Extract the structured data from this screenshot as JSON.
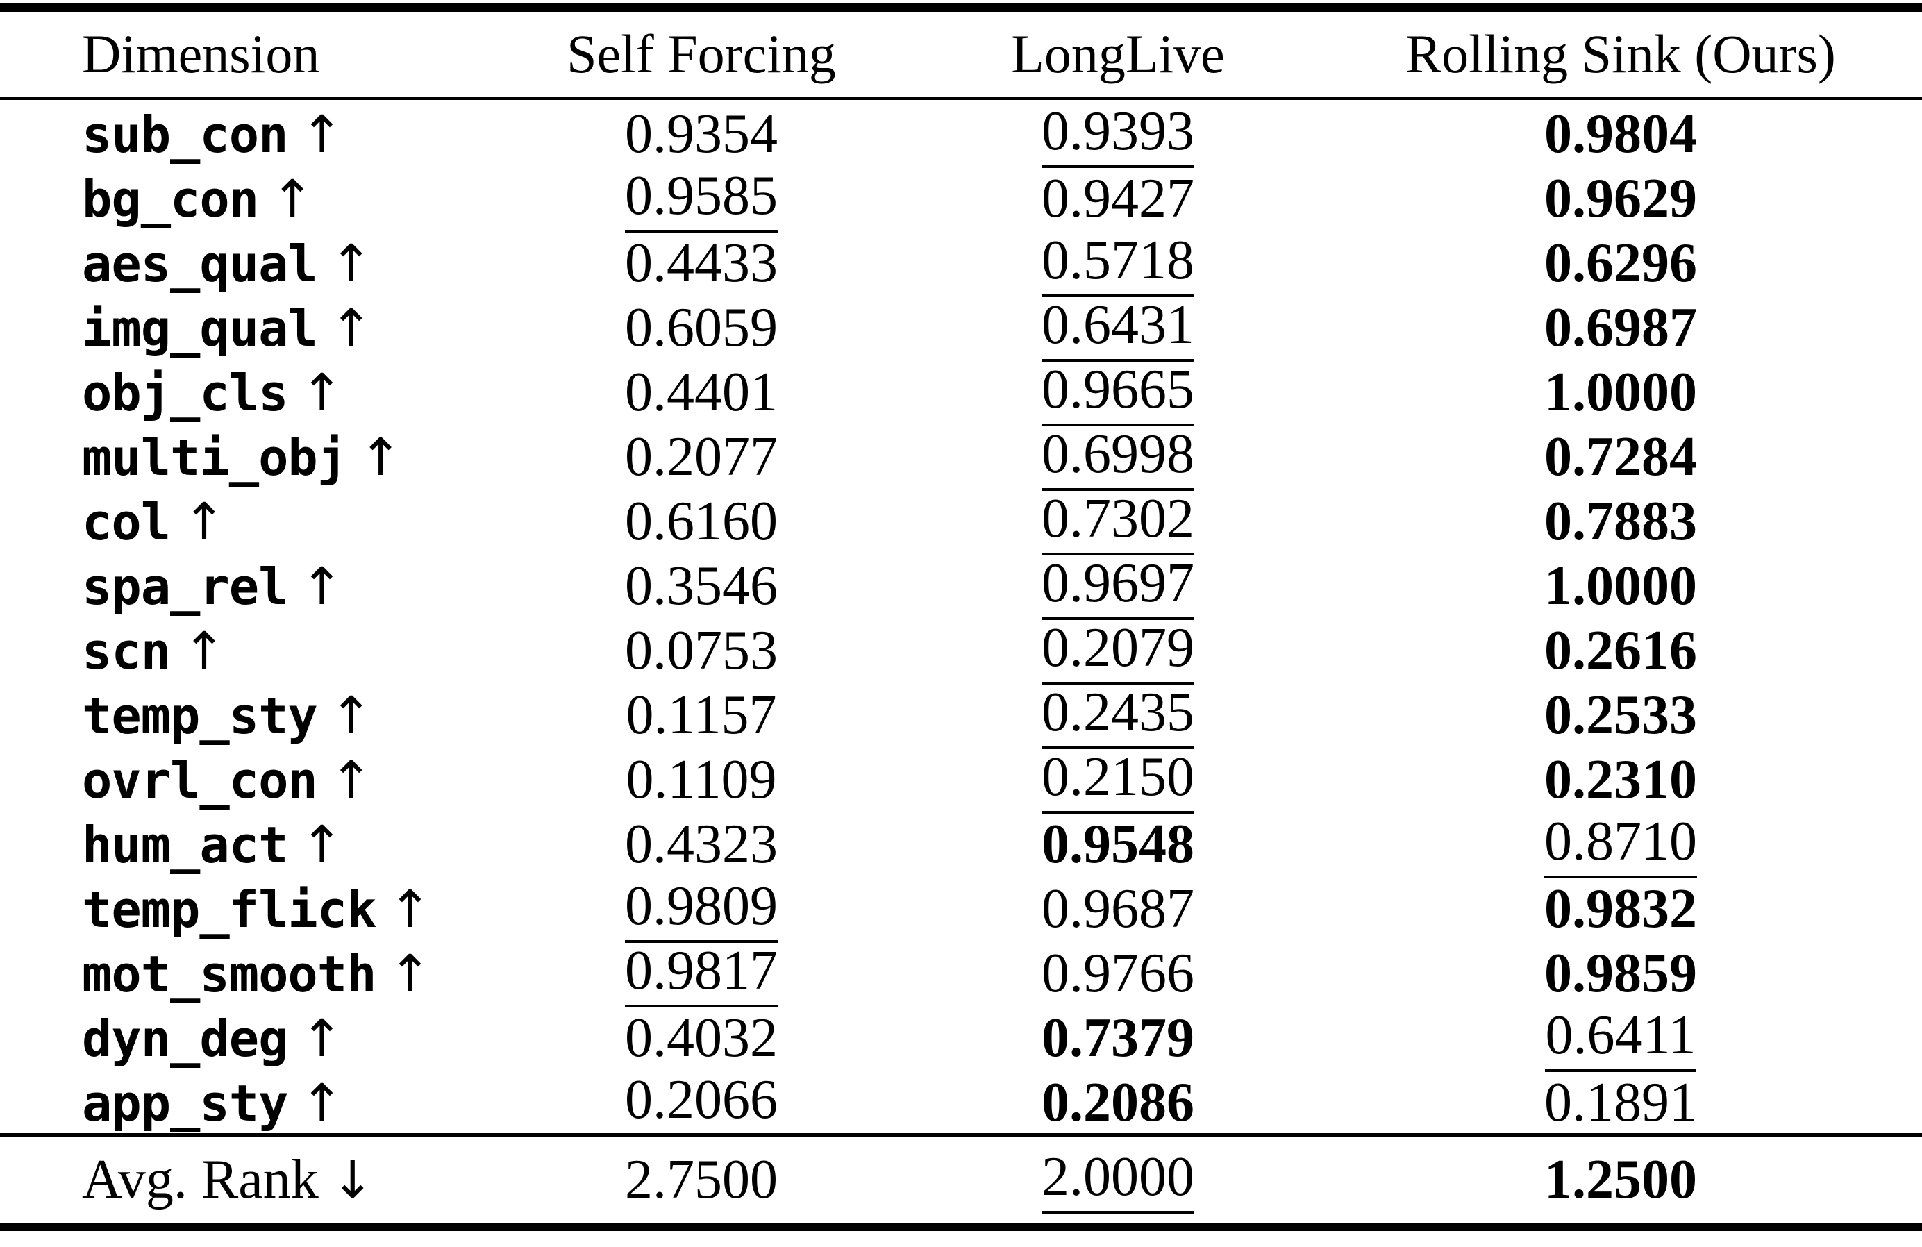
{
  "colors": {
    "background": "#ffffff",
    "text": "#000000",
    "rule": "#000000"
  },
  "table": {
    "columns": [
      "Dimension",
      "Self Forcing",
      "LongLive",
      "Rolling Sink (Ours)"
    ],
    "arrow_up": "↑",
    "arrow_down": "↓",
    "style_legend": {
      "bold": "best",
      "underline": "second-best",
      "plain": "other"
    },
    "rows": [
      {
        "dimension": "sub_con",
        "values": [
          {
            "text": "0.9354",
            "style": "plain"
          },
          {
            "text": "0.9393",
            "style": "underline"
          },
          {
            "text": "0.9804",
            "style": "bold"
          }
        ]
      },
      {
        "dimension": "bg_con",
        "values": [
          {
            "text": "0.9585",
            "style": "underline"
          },
          {
            "text": "0.9427",
            "style": "plain"
          },
          {
            "text": "0.9629",
            "style": "bold"
          }
        ]
      },
      {
        "dimension": "aes_qual",
        "values": [
          {
            "text": "0.4433",
            "style": "plain"
          },
          {
            "text": "0.5718",
            "style": "underline"
          },
          {
            "text": "0.6296",
            "style": "bold"
          }
        ]
      },
      {
        "dimension": "img_qual",
        "values": [
          {
            "text": "0.6059",
            "style": "plain"
          },
          {
            "text": "0.6431",
            "style": "underline"
          },
          {
            "text": "0.6987",
            "style": "bold"
          }
        ]
      },
      {
        "dimension": "obj_cls",
        "values": [
          {
            "text": "0.4401",
            "style": "plain"
          },
          {
            "text": "0.9665",
            "style": "underline"
          },
          {
            "text": "1.0000",
            "style": "bold"
          }
        ]
      },
      {
        "dimension": "multi_obj",
        "values": [
          {
            "text": "0.2077",
            "style": "plain"
          },
          {
            "text": "0.6998",
            "style": "underline"
          },
          {
            "text": "0.7284",
            "style": "bold"
          }
        ]
      },
      {
        "dimension": "col",
        "values": [
          {
            "text": "0.6160",
            "style": "plain"
          },
          {
            "text": "0.7302",
            "style": "underline"
          },
          {
            "text": "0.7883",
            "style": "bold"
          }
        ]
      },
      {
        "dimension": "spa_rel",
        "values": [
          {
            "text": "0.3546",
            "style": "plain"
          },
          {
            "text": "0.9697",
            "style": "underline"
          },
          {
            "text": "1.0000",
            "style": "bold"
          }
        ]
      },
      {
        "dimension": "scn",
        "values": [
          {
            "text": "0.0753",
            "style": "plain"
          },
          {
            "text": "0.2079",
            "style": "underline"
          },
          {
            "text": "0.2616",
            "style": "bold"
          }
        ]
      },
      {
        "dimension": "temp_sty",
        "values": [
          {
            "text": "0.1157",
            "style": "plain"
          },
          {
            "text": "0.2435",
            "style": "underline"
          },
          {
            "text": "0.2533",
            "style": "bold"
          }
        ]
      },
      {
        "dimension": "ovrl_con",
        "values": [
          {
            "text": "0.1109",
            "style": "plain"
          },
          {
            "text": "0.2150",
            "style": "underline"
          },
          {
            "text": "0.2310",
            "style": "bold"
          }
        ]
      },
      {
        "dimension": "hum_act",
        "values": [
          {
            "text": "0.4323",
            "style": "plain"
          },
          {
            "text": "0.9548",
            "style": "bold"
          },
          {
            "text": "0.8710",
            "style": "underline"
          }
        ]
      },
      {
        "dimension": "temp_flick",
        "values": [
          {
            "text": "0.9809",
            "style": "underline"
          },
          {
            "text": "0.9687",
            "style": "plain"
          },
          {
            "text": "0.9832",
            "style": "bold"
          }
        ]
      },
      {
        "dimension": "mot_smooth",
        "values": [
          {
            "text": "0.9817",
            "style": "underline"
          },
          {
            "text": "0.9766",
            "style": "plain"
          },
          {
            "text": "0.9859",
            "style": "bold"
          }
        ]
      },
      {
        "dimension": "dyn_deg",
        "values": [
          {
            "text": "0.4032",
            "style": "plain"
          },
          {
            "text": "0.7379",
            "style": "bold"
          },
          {
            "text": "0.6411",
            "style": "underline"
          }
        ]
      },
      {
        "dimension": "app_sty",
        "values": [
          {
            "text": "0.2066",
            "style": "underline"
          },
          {
            "text": "0.2086",
            "style": "bold"
          },
          {
            "text": "0.1891",
            "style": "plain"
          }
        ]
      }
    ],
    "footer": {
      "label": "Avg. Rank",
      "values": [
        {
          "text": "2.7500",
          "style": "plain"
        },
        {
          "text": "2.0000",
          "style": "underline"
        },
        {
          "text": "1.2500",
          "style": "bold"
        }
      ]
    }
  }
}
